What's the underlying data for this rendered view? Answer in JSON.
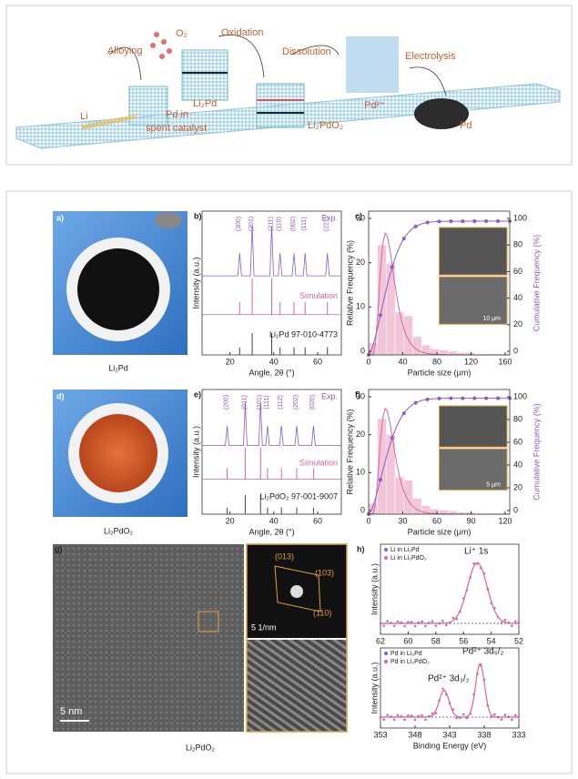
{
  "scheme": {
    "alloying": "Alloying",
    "o2": "O₂",
    "oxidation": "Oxidation",
    "dissolution": "Dissolution",
    "electrolysis": "Electrolysis",
    "li2pd": "Li₂Pd",
    "li": "Li",
    "pd_spent": [
      "Pd in",
      "spent catalyst"
    ],
    "li2pdo2": "Li₂PdO₂",
    "pd2": "Pd²⁺",
    "pd": "Pd"
  },
  "panels": {
    "a": {
      "letter": "a)",
      "caption": "Li₂Pd"
    },
    "b": {
      "letter": "b)",
      "ylabel": "Intensity (a.u.)",
      "xlabel": "Angle, 2θ (°)",
      "exp": "Exp.",
      "sim": "Simulation",
      "ref": "Li₂Pd 97-010-4773",
      "xticks": [
        20,
        40,
        60
      ],
      "peaks": [
        "(300)",
        "(201)",
        "(211)",
        "(110)",
        "(002)",
        "(111)",
        "(221)"
      ]
    },
    "c": {
      "letter": "c)",
      "ylabel": "Relative Frequency (%)",
      "y2label": "Cumulative Frequency (%)",
      "xlabel": "Particle size (μm)",
      "xticks": [
        0,
        40,
        80,
        120,
        160
      ],
      "yticks": [
        0,
        10,
        20,
        30
      ],
      "y2ticks": [
        0,
        20,
        40,
        60,
        80,
        100
      ],
      "scale": "10 μm"
    },
    "d": {
      "letter": "d)",
      "caption": "Li₂PdO₂"
    },
    "e": {
      "letter": "e)",
      "ylabel": "Intensity (a.u.)",
      "xlabel": "Angle, 2θ (°)",
      "exp": "Exp.",
      "sim": "Simulation",
      "ref": "Li₂PdO₂ 97-001-9007",
      "xticks": [
        20,
        40,
        60
      ],
      "peaks": [
        "(200)",
        "(011)",
        "(101)",
        "(111)",
        "(112)",
        "(202)",
        "(020)"
      ]
    },
    "f": {
      "letter": "f)",
      "ylabel": "Relative Frequency (%)",
      "y2label": "Cumulative Frequency (%)",
      "xlabel": "Particle size (μm)",
      "xticks": [
        0,
        30,
        60,
        90,
        120
      ],
      "yticks": [
        0,
        10,
        20,
        30
      ],
      "y2ticks": [
        0,
        20,
        40,
        60,
        80,
        100
      ],
      "scale": "5 μm"
    },
    "g": {
      "letter": "g)",
      "scale": "5 nm",
      "saed": [
        "(013)",
        "(103)",
        "(110)"
      ],
      "saed_scale": "5 1/nm",
      "caption": "Li₂PdO₂"
    },
    "h": {
      "letter": "h)",
      "top": {
        "legend": [
          "Li in Li₂Pd",
          "Li in Li₂PdO₂"
        ],
        "peak": "Li⁺ 1s",
        "ylabel": "Intensity (a.u.)",
        "xticks": [
          62,
          60,
          58,
          56,
          54,
          52
        ]
      },
      "bottom": {
        "legend": [
          "Pd in Li₂Pd",
          "Pd in Li₂PdO₂"
        ],
        "peaks": [
          "Pd²⁺ 3d₃/₂",
          "Pd²⁺ 3d₅/₂"
        ],
        "ylabel": "Intensity (a.u.)",
        "xticks": [
          353,
          348,
          343,
          338,
          333
        ],
        "xlabel": "Binding Energy (eV)"
      }
    }
  }
}
